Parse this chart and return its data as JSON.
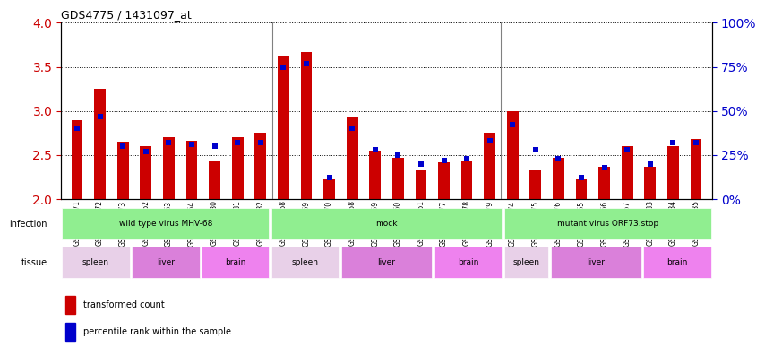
{
  "title": "GDS4775 / 1431097_at",
  "samples": [
    "GSM1243471",
    "GSM1243472",
    "GSM1243473",
    "GSM1243462",
    "GSM1243463",
    "GSM1243464",
    "GSM1243480",
    "GSM1243481",
    "GSM1243482",
    "GSM1243468",
    "GSM1243469",
    "GSM1243470",
    "GSM1243458",
    "GSM1243459",
    "GSM1243460",
    "GSM1243461",
    "GSM1243477",
    "GSM1243478",
    "GSM1243479",
    "GSM1243474",
    "GSM1243475",
    "GSM1243476",
    "GSM1243465",
    "GSM1243466",
    "GSM1243467",
    "GSM1243483",
    "GSM1243484",
    "GSM1243485"
  ],
  "red_values": [
    2.9,
    3.25,
    2.65,
    2.6,
    2.7,
    2.66,
    2.43,
    2.7,
    2.75,
    3.63,
    3.67,
    2.22,
    2.93,
    2.55,
    2.47,
    2.33,
    2.42,
    2.43,
    2.75,
    3.0,
    2.33,
    2.47,
    2.22,
    2.37,
    2.6,
    2.37,
    2.6,
    2.68
  ],
  "blue_values": [
    40,
    47,
    30,
    27,
    32,
    31,
    30,
    32,
    32,
    75,
    77,
    12,
    40,
    28,
    25,
    20,
    22,
    23,
    33,
    42,
    28,
    23,
    12,
    18,
    28,
    20,
    32,
    32
  ],
  "ylim_left": [
    2.0,
    4.0
  ],
  "ylim_right": [
    0,
    100
  ],
  "yticks_left": [
    2.0,
    2.5,
    3.0,
    3.5,
    4.0
  ],
  "yticks_right": [
    0,
    25,
    50,
    75,
    100
  ],
  "infection_groups": [
    {
      "label": "wild type virus MHV-68",
      "start": 0,
      "end": 9
    },
    {
      "label": "mock",
      "start": 9,
      "end": 19
    },
    {
      "label": "mutant virus ORF73.stop",
      "start": 19,
      "end": 28
    }
  ],
  "tissue_groups": [
    {
      "label": "spleen",
      "start": 0,
      "end": 3,
      "fc": "#E8D0E8"
    },
    {
      "label": "liver",
      "start": 3,
      "end": 6,
      "fc": "#DA80DA"
    },
    {
      "label": "brain",
      "start": 6,
      "end": 9,
      "fc": "#EE82EE"
    },
    {
      "label": "spleen",
      "start": 9,
      "end": 12,
      "fc": "#E8D0E8"
    },
    {
      "label": "liver",
      "start": 12,
      "end": 16,
      "fc": "#DA80DA"
    },
    {
      "label": "brain",
      "start": 16,
      "end": 19,
      "fc": "#EE82EE"
    },
    {
      "label": "spleen",
      "start": 19,
      "end": 21,
      "fc": "#E8D0E8"
    },
    {
      "label": "liver",
      "start": 21,
      "end": 25,
      "fc": "#DA80DA"
    },
    {
      "label": "brain",
      "start": 25,
      "end": 28,
      "fc": "#EE82EE"
    }
  ],
  "bar_color": "#CC0000",
  "dot_color": "#0000CC",
  "bar_width": 0.5,
  "left_tick_color": "#CC0000",
  "right_tick_color": "#0000CC",
  "baseline": 2.0,
  "infection_color": "#90EE90"
}
